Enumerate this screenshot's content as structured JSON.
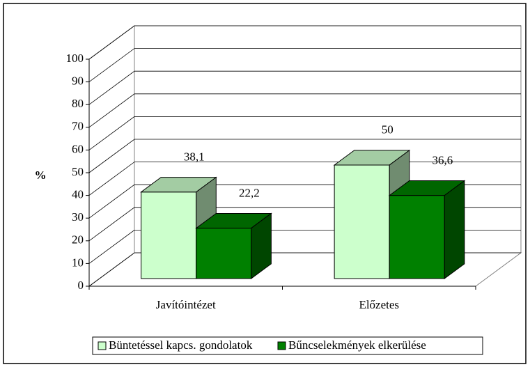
{
  "chart_data": {
    "type": "bar3d",
    "categories": [
      "Javítóintézet",
      "Előzetes"
    ],
    "ylabel": "%",
    "ylim": [
      0,
      100
    ],
    "yticks": [
      0,
      10,
      20,
      30,
      40,
      50,
      60,
      70,
      80,
      90,
      100
    ],
    "grid": true,
    "legend": "bottom",
    "series": [
      {
        "name": "Büntetéssel kapcs. gondolatok",
        "color": "#ccffcc",
        "values": [
          38.1,
          50
        ],
        "value_labels": [
          "38,1",
          "50"
        ]
      },
      {
        "name": "Bűncselekmények elkerülése",
        "color": "#008000",
        "values": [
          22.2,
          36.6
        ],
        "value_labels": [
          "22,2",
          "36,6"
        ]
      }
    ]
  }
}
